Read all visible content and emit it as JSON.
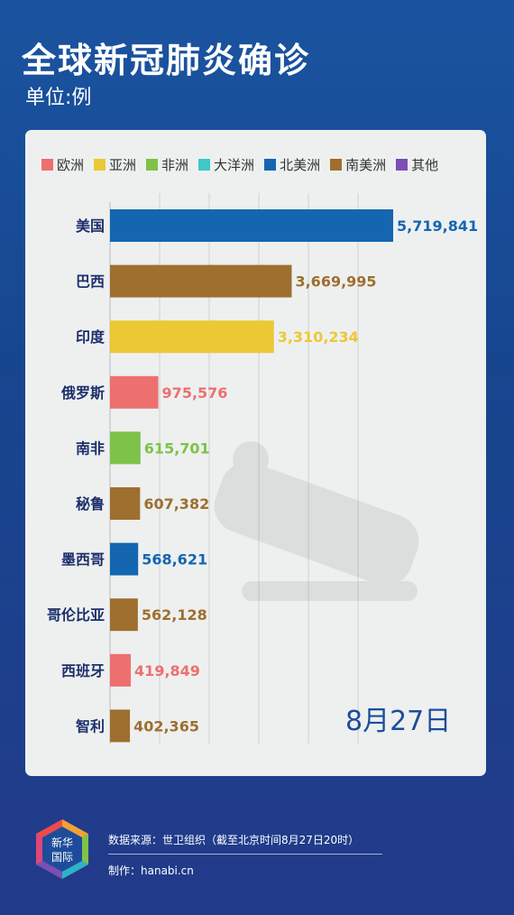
{
  "header": {
    "title": "全球新冠肺炎确诊",
    "unit": "单位:例"
  },
  "legend": [
    {
      "label": "欧洲",
      "color": "#ee6f6f"
    },
    {
      "label": "亚洲",
      "color": "#ecc834"
    },
    {
      "label": "非洲",
      "color": "#7fc24a"
    },
    {
      "label": "大洋洲",
      "color": "#3fc7c9"
    },
    {
      "label": "北美洲",
      "color": "#1466b0"
    },
    {
      "label": "南美洲",
      "color": "#9e6f2e"
    },
    {
      "label": "其他",
      "color": "#7b4fb3"
    }
  ],
  "date_label": "8月27日",
  "chart_data": {
    "type": "bar",
    "orientation": "horizontal",
    "title": "全球新冠肺炎确诊",
    "unit": "单位:例",
    "categories": [
      "美国",
      "巴西",
      "印度",
      "俄罗斯",
      "南非",
      "秘鲁",
      "墨西哥",
      "哥伦比亚",
      "西班牙",
      "智利"
    ],
    "values": [
      5719841,
      3669995,
      3310234,
      975576,
      615701,
      607382,
      568621,
      562128,
      419849,
      402365
    ],
    "value_labels": [
      "5,719,841",
      "3,669,995",
      "3,310,234",
      "975,576",
      "615,701",
      "607,382",
      "568,621",
      "562,128",
      "419,849",
      "402,365"
    ],
    "regions": [
      "北美洲",
      "南美洲",
      "亚洲",
      "欧洲",
      "非洲",
      "南美洲",
      "北美洲",
      "南美洲",
      "欧洲",
      "南美洲"
    ],
    "xlim": [
      0,
      5719841
    ],
    "grid": true,
    "legend_position": "top"
  },
  "footer": {
    "logo_text_line1": "新华",
    "logo_text_line2": "国际",
    "source": "数据来源：世卫组织（截至北京时间8月27日20时）",
    "maker": "制作：hanabi.cn"
  }
}
